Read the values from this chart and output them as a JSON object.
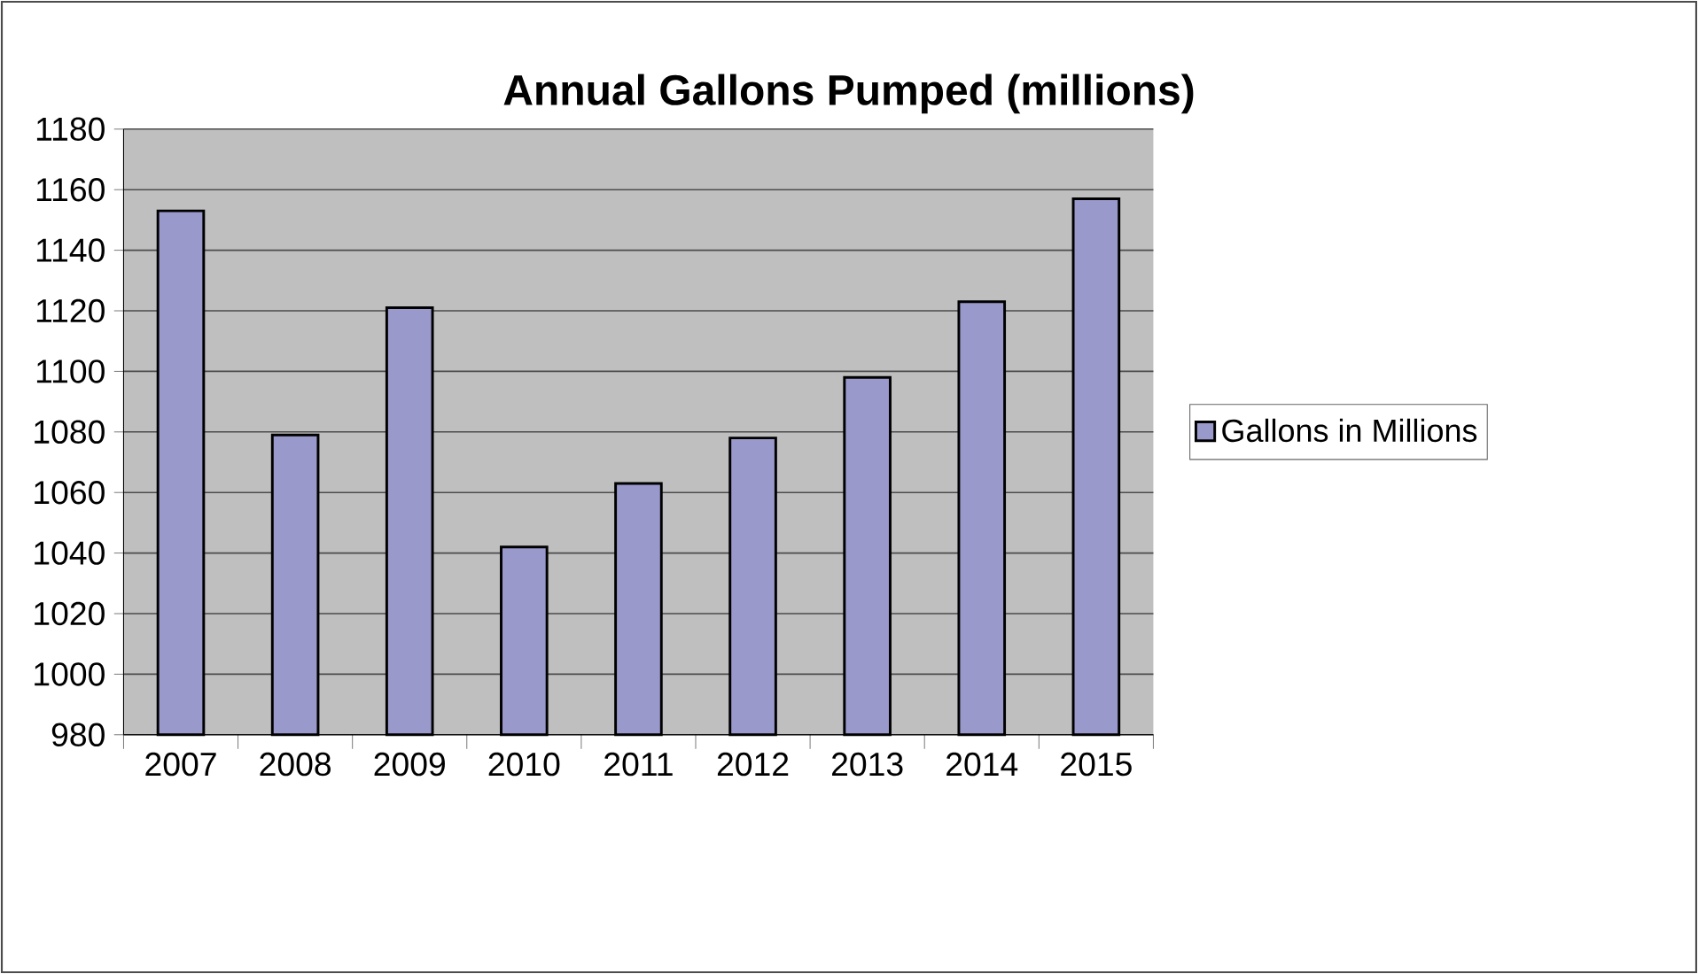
{
  "chart_data": {
    "type": "bar",
    "title": "Annual Gallons Pumped (millions)",
    "categories": [
      "2007",
      "2008",
      "2009",
      "2010",
      "2011",
      "2012",
      "2013",
      "2014",
      "2015"
    ],
    "series": [
      {
        "name": "Gallons in Millions",
        "color": "#9999cc",
        "values": [
          1153,
          1079,
          1121,
          1042,
          1063,
          1078,
          1098,
          1123,
          1157
        ]
      }
    ],
    "ylim": [
      980,
      1180
    ],
    "yticks": [
      980,
      1000,
      1020,
      1040,
      1060,
      1080,
      1100,
      1120,
      1140,
      1160,
      1180
    ],
    "grid": "y",
    "legend": "right"
  }
}
